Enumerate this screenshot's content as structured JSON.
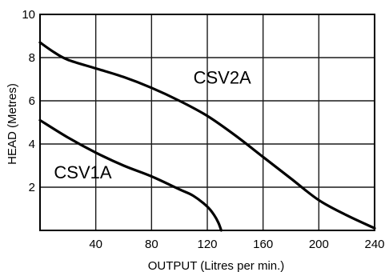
{
  "chart_data": {
    "type": "line",
    "title": "",
    "xlabel": "OUTPUT (Litres per min.)",
    "ylabel": "HEAD (Metres)",
    "xlim": [
      0,
      240
    ],
    "ylim": [
      0,
      10
    ],
    "x_ticks": [
      40,
      80,
      120,
      160,
      200,
      240
    ],
    "y_ticks": [
      2,
      4,
      6,
      8,
      10
    ],
    "grid": true,
    "series": [
      {
        "name": "CSV2A",
        "x": [
          0,
          10,
          20,
          40,
          60,
          80,
          100,
          120,
          140,
          160,
          180,
          200,
          220,
          240
        ],
        "y": [
          8.7,
          8.25,
          7.9,
          7.5,
          7.1,
          6.6,
          6.0,
          5.3,
          4.4,
          3.4,
          2.4,
          1.4,
          0.7,
          0.1
        ],
        "label_at": [
          110,
          6.8
        ]
      },
      {
        "name": "CSV1A",
        "x": [
          0,
          20,
          40,
          60,
          80,
          100,
          110,
          120,
          125,
          128,
          130
        ],
        "y": [
          5.1,
          4.3,
          3.6,
          3.0,
          2.5,
          1.9,
          1.6,
          1.1,
          0.7,
          0.35,
          0.0
        ],
        "label_at": [
          10,
          2.4
        ]
      }
    ]
  },
  "colors": {
    "background": "#ffffff",
    "line": "#000000",
    "grid": "#1a1a1a"
  }
}
